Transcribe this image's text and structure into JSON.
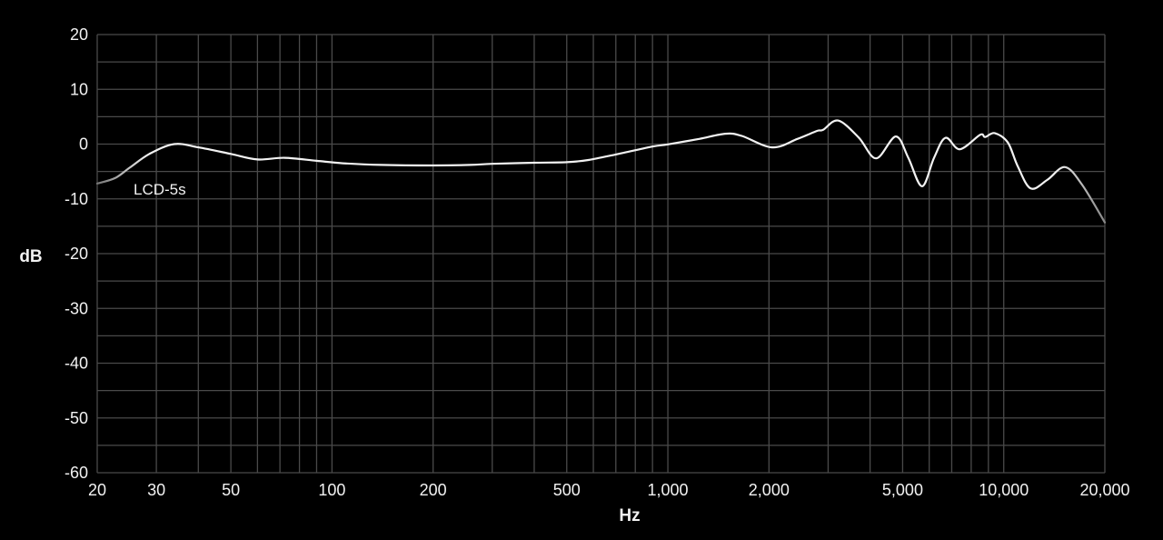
{
  "chart_data": {
    "type": "line",
    "title": "",
    "xlabel": "Hz",
    "ylabel": "dB",
    "x_scale": "log",
    "xlim": [
      20,
      20000
    ],
    "ylim": [
      -60,
      20
    ],
    "grid": true,
    "x_gridlines": [
      20,
      30,
      40,
      50,
      60,
      70,
      80,
      90,
      100,
      200,
      300,
      400,
      500,
      600,
      700,
      800,
      900,
      1000,
      2000,
      3000,
      4000,
      5000,
      6000,
      7000,
      8000,
      9000,
      10000,
      20000
    ],
    "y_gridlines": [
      20,
      15,
      10,
      5,
      0,
      -5,
      -10,
      -15,
      -20,
      -25,
      -30,
      -35,
      -40,
      -45,
      -50,
      -55,
      -60
    ],
    "x_ticks": [
      {
        "value": 20,
        "label": "20"
      },
      {
        "value": 30,
        "label": "30"
      },
      {
        "value": 50,
        "label": "50"
      },
      {
        "value": 100,
        "label": "100"
      },
      {
        "value": 200,
        "label": "200"
      },
      {
        "value": 500,
        "label": "500"
      },
      {
        "value": 1000,
        "label": "1,000"
      },
      {
        "value": 2000,
        "label": "2,000"
      },
      {
        "value": 5000,
        "label": "5,000"
      },
      {
        "value": 10000,
        "label": "10,000"
      },
      {
        "value": 20000,
        "label": "20,000"
      }
    ],
    "y_ticks": [
      {
        "value": 20,
        "label": "20"
      },
      {
        "value": 10,
        "label": "10"
      },
      {
        "value": 0,
        "label": "0"
      },
      {
        "value": -10,
        "label": "-10"
      },
      {
        "value": -20,
        "label": "-20"
      },
      {
        "value": -30,
        "label": "-30"
      },
      {
        "value": -40,
        "label": "-40"
      },
      {
        "value": -50,
        "label": "-50"
      },
      {
        "value": -60,
        "label": "-60"
      }
    ],
    "legend_placement": "inline-left",
    "colors": {
      "background": "#000000",
      "grid": "#4a4a4a",
      "line": "#f2f2f2",
      "text": "#f2f2f2"
    },
    "series": [
      {
        "name": "LCD-5s",
        "x": [
          20,
          22.6,
          25,
          28.6,
          33.9,
          40,
          50,
          60,
          72.3,
          90,
          107.7,
          140,
          200,
          258,
          300,
          400,
          500,
          580,
          700,
          900,
          1000,
          1240,
          1484,
          1660,
          2045,
          2430,
          2780,
          2900,
          3213,
          3700,
          4170,
          4770,
          5200,
          5710,
          6200,
          6710,
          7400,
          8510,
          8800,
          9400,
          10280,
          11000,
          12030,
          13500,
          15220,
          17100,
          20000
        ],
        "y": [
          -7.2,
          -6.2,
          -4.3,
          -1.8,
          0.0,
          -0.6,
          -1.8,
          -2.8,
          -2.5,
          -3.05,
          -3.5,
          -3.8,
          -3.9,
          -3.8,
          -3.6,
          -3.4,
          -3.3,
          -2.9,
          -1.9,
          -0.45,
          -0.05,
          0.95,
          1.9,
          1.5,
          -0.6,
          0.95,
          2.4,
          2.6,
          4.3,
          1.2,
          -2.6,
          1.4,
          -2.5,
          -7.7,
          -2.5,
          1.15,
          -0.95,
          1.7,
          1.3,
          2.0,
          0.3,
          -4.0,
          -8.1,
          -6.5,
          -4.2,
          -7.4,
          -14.3
        ]
      }
    ]
  }
}
